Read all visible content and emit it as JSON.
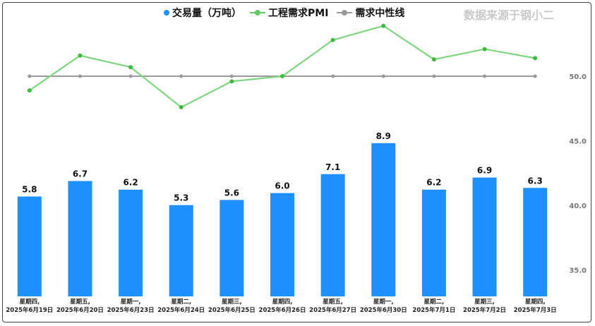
{
  "legend": {
    "bar_label": "交易量（万吨）",
    "line_label": "工程需求PMI",
    "neutral_label": "需求中性线"
  },
  "watermark": "数据来源于钢小二",
  "colors": {
    "bar": "#1E90FF",
    "pmi": "#7ED67E",
    "pmi_marker": "#3DBB3D",
    "neutral": "#9a9a9a"
  },
  "chart_data": {
    "type": "bar+line",
    "categories": [
      [
        "星期四,",
        "2025年6月19日"
      ],
      [
        "星期五,",
        "2025年6月20日"
      ],
      [
        "星期一,",
        "2025年6月23日"
      ],
      [
        "星期二,",
        "2025年6月24日"
      ],
      [
        "星期三,",
        "2025年6月25日"
      ],
      [
        "星期四,",
        "2025年6月26日"
      ],
      [
        "星期五,",
        "2025年6月27日"
      ],
      [
        "星期一,",
        "2025年6月30日"
      ],
      [
        "星期二,",
        "2025年7月1日"
      ],
      [
        "星期三,",
        "2025年7月2日"
      ],
      [
        "星期四,",
        "2025年7月3日"
      ]
    ],
    "series": [
      {
        "name": "交易量（万吨）",
        "type": "bar",
        "values": [
          5.8,
          6.7,
          6.2,
          5.3,
          5.6,
          6.0,
          7.1,
          8.9,
          6.2,
          6.9,
          6.3
        ],
        "labels": [
          "5.8",
          "6.7",
          "6.2",
          "5.3",
          "5.6",
          "6.0",
          "7.1",
          "8.9",
          "6.2",
          "6.9",
          "6.3"
        ]
      },
      {
        "name": "工程需求PMI",
        "type": "line",
        "axis": "right",
        "values": [
          48.9,
          51.6,
          50.7,
          47.6,
          49.6,
          50.0,
          52.8,
          53.9,
          51.3,
          52.1,
          51.4
        ]
      },
      {
        "name": "需求中性线",
        "type": "line",
        "axis": "right",
        "values": [
          50,
          50,
          50,
          50,
          50,
          50,
          50,
          50,
          50,
          50,
          50
        ]
      }
    ],
    "right_axis": {
      "ticks": [
        "50.0",
        "45.0",
        "40.0",
        "35.0"
      ],
      "tick_values": [
        50,
        45,
        40,
        35
      ],
      "range": [
        33.0,
        55.6
      ]
    },
    "bar_range": [
      0,
      10.5
    ]
  }
}
